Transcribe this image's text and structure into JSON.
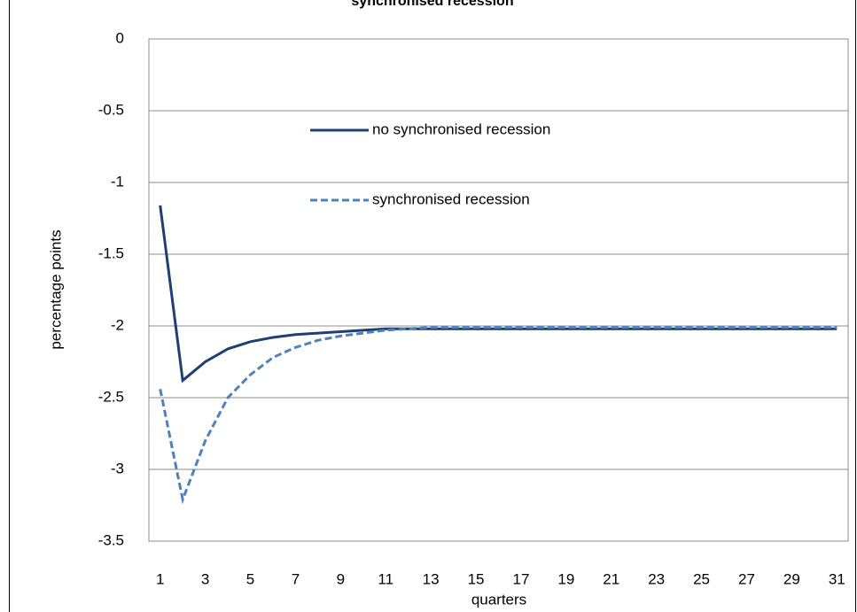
{
  "chart_data": {
    "type": "line",
    "title": "synchronised recession",
    "xlabel": "quarters",
    "ylabel": "percentage points",
    "x": [
      1,
      2,
      3,
      4,
      5,
      6,
      7,
      8,
      9,
      10,
      11,
      12,
      13,
      14,
      15,
      16,
      17,
      18,
      19,
      20,
      21,
      22,
      23,
      24,
      25,
      26,
      27,
      28,
      29,
      30,
      31
    ],
    "xlim": [
      0.5,
      31.5
    ],
    "xticks": [
      1,
      3,
      5,
      7,
      9,
      11,
      13,
      15,
      17,
      19,
      21,
      23,
      25,
      27,
      29,
      31
    ],
    "ylim": [
      -3.5,
      0
    ],
    "yticks": [
      0,
      -0.5,
      -1,
      -1.5,
      -2,
      -2.5,
      -3,
      -3.5
    ],
    "grid": true,
    "legend": "inside upper center",
    "series": [
      {
        "name": "no synchronised recession",
        "color": "#1f3f73",
        "dash": "solid",
        "values": [
          -1.16,
          -2.38,
          -2.25,
          -2.16,
          -2.11,
          -2.08,
          -2.06,
          -2.05,
          -2.04,
          -2.03,
          -2.02,
          -2.02,
          -2.02,
          -2.02,
          -2.02,
          -2.02,
          -2.02,
          -2.02,
          -2.02,
          -2.02,
          -2.02,
          -2.02,
          -2.02,
          -2.02,
          -2.02,
          -2.02,
          -2.02,
          -2.02,
          -2.02,
          -2.02,
          -2.02
        ]
      },
      {
        "name": "synchronised recession",
        "color": "#4f81bd",
        "dash": "dashed",
        "values": [
          -2.44,
          -3.21,
          -2.8,
          -2.5,
          -2.34,
          -2.22,
          -2.15,
          -2.1,
          -2.07,
          -2.05,
          -2.03,
          -2.02,
          -2.01,
          -2.01,
          -2.01,
          -2.01,
          -2.01,
          -2.01,
          -2.01,
          -2.01,
          -2.01,
          -2.01,
          -2.01,
          -2.01,
          -2.01,
          -2.01,
          -2.01,
          -2.01,
          -2.01,
          -2.01,
          -2.01
        ]
      }
    ]
  }
}
